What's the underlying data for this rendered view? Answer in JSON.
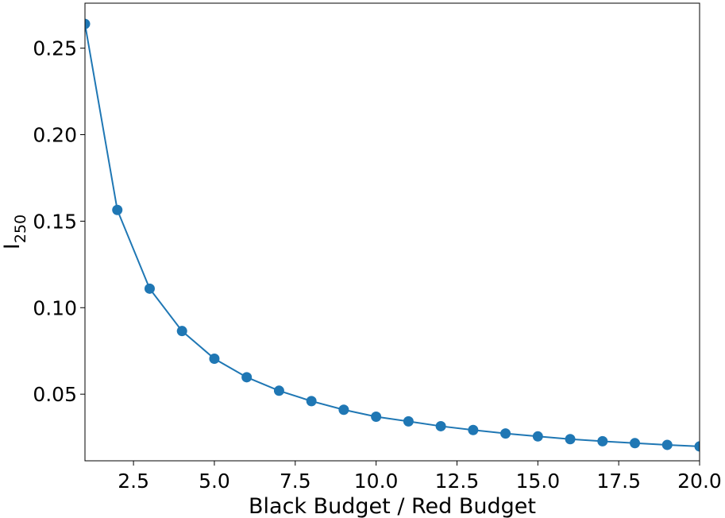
{
  "chart_data": {
    "type": "line",
    "title": "",
    "xlabel": "Black Budget / Red Budget",
    "ylabel_main": "I",
    "ylabel_sub": "250",
    "xlim": [
      1,
      20
    ],
    "ylim": [
      0.0115,
      0.276
    ],
    "xticks": [
      2.5,
      5.0,
      7.5,
      10.0,
      12.5,
      15.0,
      17.5,
      20.0
    ],
    "xtick_labels": [
      "2.5",
      "5.0",
      "7.5",
      "10.0",
      "12.5",
      "15.0",
      "17.5",
      "20.0"
    ],
    "yticks": [
      0.05,
      0.1,
      0.15,
      0.2,
      0.25
    ],
    "ytick_labels": [
      "0.05",
      "0.10",
      "0.15",
      "0.20",
      "0.25"
    ],
    "grid": false,
    "line_color": "#1f77b4",
    "series": [
      {
        "x": [
          1,
          2,
          3,
          4,
          5,
          6,
          7,
          8,
          9,
          10,
          11,
          12,
          13,
          14,
          15,
          16,
          17,
          18,
          19,
          20
        ],
        "y": [
          0.264,
          0.1565,
          0.111,
          0.0865,
          0.0705,
          0.0598,
          0.052,
          0.046,
          0.041,
          0.037,
          0.0343,
          0.0315,
          0.0293,
          0.0273,
          0.0256,
          0.024,
          0.0228,
          0.0217,
          0.0207,
          0.0198
        ]
      }
    ]
  }
}
